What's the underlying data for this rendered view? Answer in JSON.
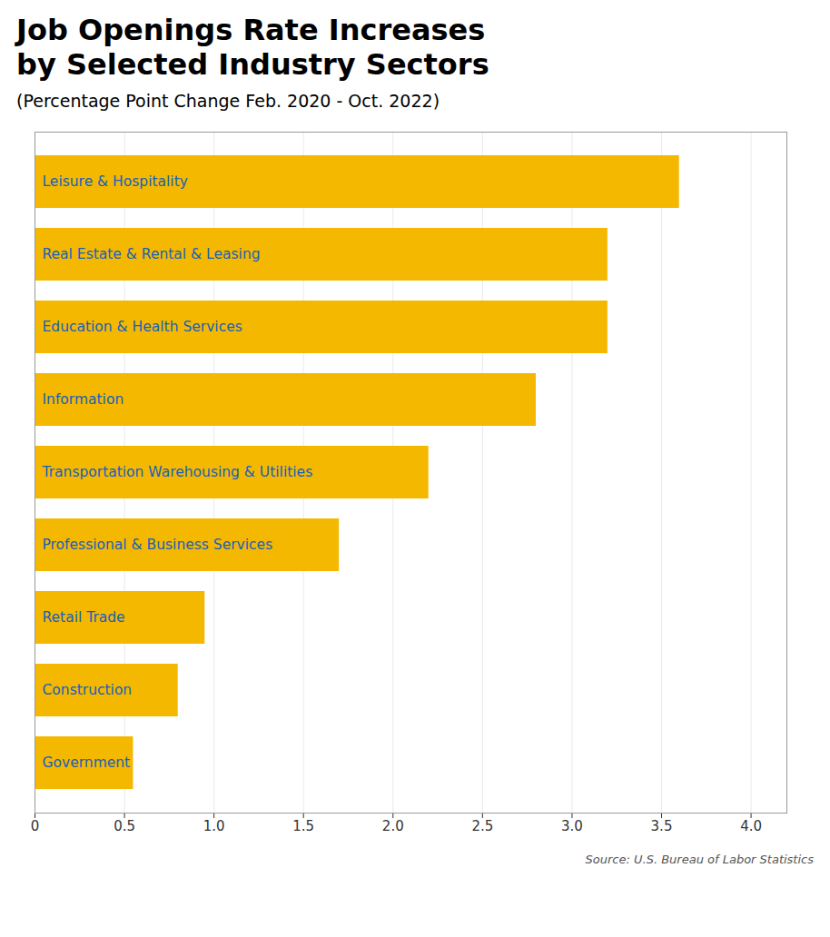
{
  "chart_data": {
    "type": "bar",
    "orientation": "horizontal",
    "title": "Job Openings Rate Increases\nby Selected Industry Sectors",
    "subtitle": "(Percentage Point Change Feb. 2020 - Oct. 2022)",
    "source": "Source: U.S. Bureau of Labor Statistics",
    "categories": [
      "Leisure & Hospitality",
      "Real Estate & Rental & Leasing",
      "Education & Health Services",
      "Information",
      "Transportation Warehousing & Utilities",
      "Professional & Business Services",
      "Retail Trade",
      "Construction",
      "Government"
    ],
    "values": [
      3.6,
      3.2,
      3.2,
      2.8,
      2.2,
      1.7,
      0.95,
      0.8,
      0.55
    ],
    "color": "#F5B800",
    "xlim": [
      0,
      4.2
    ],
    "xticks": [
      0,
      0.5,
      {
        "value": 1.0,
        "label": "1.0"
      },
      1.5,
      {
        "value": 2.0,
        "label": "2.0"
      },
      2.5,
      {
        "value": 3.0,
        "label": "3.0"
      },
      3.5,
      {
        "value": 4.0,
        "label": "4.0"
      }
    ],
    "grid": true,
    "tick_labels": "x"
  }
}
